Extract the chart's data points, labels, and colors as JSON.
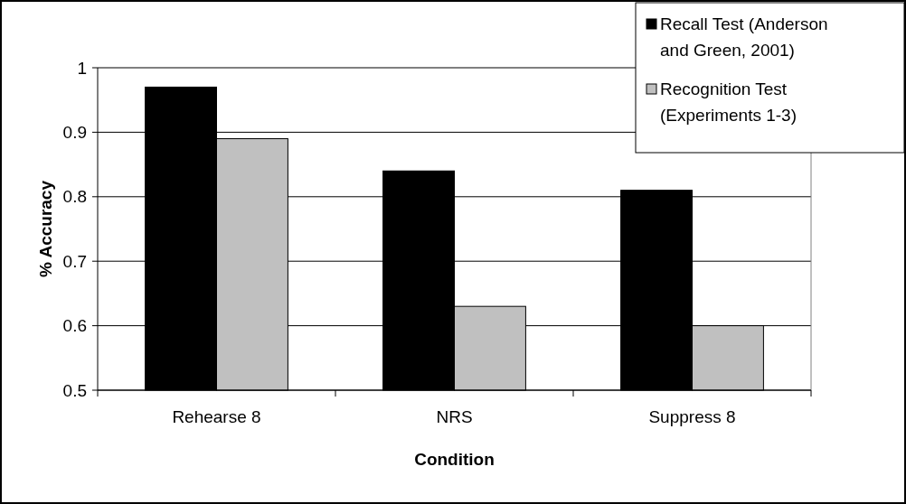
{
  "chart_data": {
    "type": "bar",
    "xlabel": "Condition",
    "ylabel": "% Accuracy",
    "categories": [
      "Rehearse 8",
      "NRS",
      "Suppress 8"
    ],
    "series": [
      {
        "name": "Recall Test (Anderson and Green, 2001)",
        "color": "#000000",
        "values": [
          0.97,
          0.84,
          0.81
        ]
      },
      {
        "name": "Recognition Test (Experiments 1-3)",
        "color": "#c0c0c0",
        "values": [
          0.89,
          0.63,
          0.6
        ]
      }
    ],
    "ylim": [
      0.5,
      1
    ],
    "yticks": [
      0.5,
      0.6,
      0.7,
      0.8,
      0.9,
      1
    ],
    "grid": "y",
    "legend": "top right"
  }
}
